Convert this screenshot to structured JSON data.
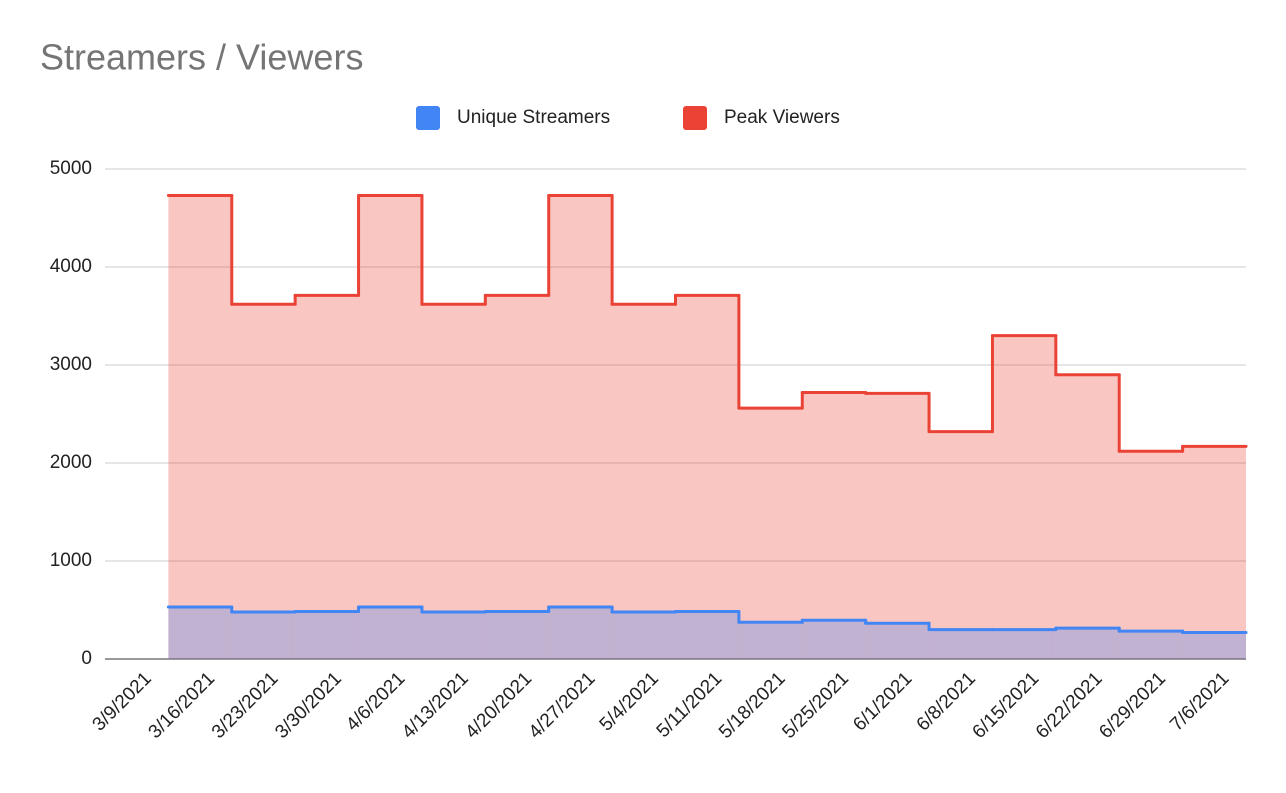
{
  "chart_data": {
    "type": "stepped-area",
    "title": "Streamers / Viewers",
    "categories": [
      "3/9/2021",
      "3/16/2021",
      "3/23/2021",
      "3/30/2021",
      "4/6/2021",
      "4/13/2021",
      "4/20/2021",
      "4/27/2021",
      "5/4/2021",
      "5/11/2021",
      "5/18/2021",
      "5/25/2021",
      "6/1/2021",
      "6/8/2021",
      "6/15/2021",
      "6/22/2021",
      "6/29/2021",
      "7/6/2021"
    ],
    "series": [
      {
        "name": "Unique Streamers",
        "color": "#4285f4",
        "values": [
          null,
          530,
          480,
          485,
          530,
          480,
          485,
          530,
          480,
          485,
          375,
          395,
          365,
          300,
          300,
          315,
          285,
          270
        ]
      },
      {
        "name": "Peak Viewers",
        "color": "#ea4335",
        "values": [
          null,
          4730,
          3620,
          3710,
          4730,
          3620,
          3710,
          4730,
          3620,
          3710,
          2560,
          2720,
          2710,
          2320,
          3300,
          2900,
          2120,
          2170
        ]
      }
    ],
    "ylim": [
      0,
      5000
    ],
    "yticks": [
      0,
      1000,
      2000,
      3000,
      4000,
      5000
    ],
    "grid": true,
    "legend": "top"
  }
}
